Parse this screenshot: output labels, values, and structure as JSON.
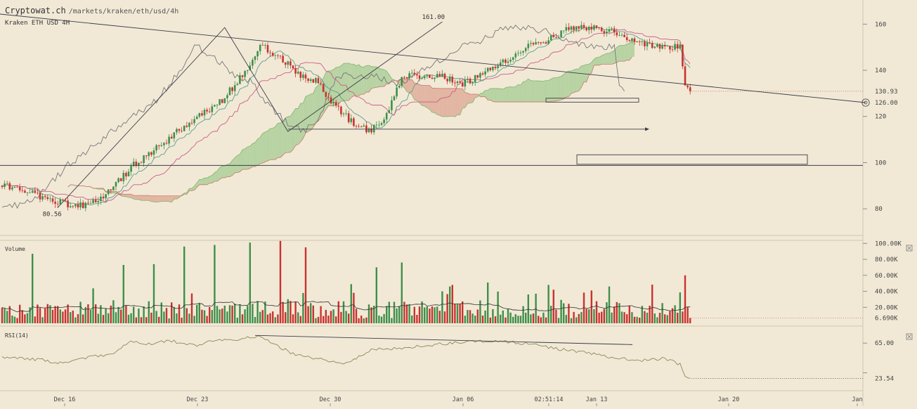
{
  "header": {
    "brand": "Cryptowat.ch",
    "path": "/markets/kraken/eth/usd/4h",
    "symbol": "Kraken ETH USD 4H"
  },
  "colors": {
    "background": "#f1e9d6",
    "up": "#3f8f4a",
    "down": "#c8332f",
    "cloud_bull": "#9fc98d",
    "cloud_bear": "#dca08c",
    "tenkan": "#5a9e8c",
    "kijun": "#cc5c86",
    "chikou": "#777777",
    "trendline": "#3c3c48",
    "rsi_line": "#8a8a5a",
    "current_price": "#cc6a6a"
  },
  "chart_data": [
    {
      "id": "price",
      "type": "candlestick",
      "ylim": [
        70,
        168
      ],
      "y_ticks": [
        "160",
        "140",
        "120",
        "100",
        "80"
      ],
      "current_price_label": "130.93",
      "target_label": "126.00",
      "annotations": {
        "high": "161.00",
        "low": "80.56"
      },
      "x_ticks": [
        "Dec 16",
        "Dec 23",
        "Dec 30",
        "Jan 06",
        "02:51:14",
        "Jan 13",
        "Jan 20",
        "Jan"
      ],
      "ohlc_profile": [
        [
          0,
          90
        ],
        [
          8,
          88
        ],
        [
          14,
          86
        ],
        [
          22,
          83
        ],
        [
          28,
          81
        ],
        [
          34,
          82
        ],
        [
          40,
          85
        ],
        [
          52,
          99
        ],
        [
          62,
          107
        ],
        [
          72,
          116
        ],
        [
          86,
          126
        ],
        [
          96,
          139
        ],
        [
          102,
          151
        ],
        [
          110,
          146
        ],
        [
          118,
          137
        ],
        [
          124,
          136
        ],
        [
          130,
          126
        ],
        [
          140,
          116
        ],
        [
          146,
          114
        ],
        [
          152,
          121
        ],
        [
          158,
          137
        ],
        [
          166,
          138
        ],
        [
          174,
          137
        ],
        [
          182,
          134
        ],
        [
          196,
          142
        ],
        [
          208,
          150
        ],
        [
          218,
          154
        ],
        [
          226,
          159
        ],
        [
          234,
          158
        ],
        [
          240,
          157
        ],
        [
          246,
          155
        ],
        [
          254,
          151
        ],
        [
          262,
          150
        ],
        [
          268,
          150
        ],
        [
          270,
          132
        ],
        [
          272,
          130.93
        ]
      ]
    },
    {
      "id": "volume",
      "type": "bar",
      "title": "Volume",
      "ylim": [
        0,
        102
      ],
      "y_ticks": [
        "100.00K",
        "80.00K",
        "60.00K",
        "40.00K",
        "20.00K"
      ],
      "current_label": "6.690K",
      "spikes": [
        [
          12,
          87
        ],
        [
          48,
          73
        ],
        [
          60,
          74
        ],
        [
          72,
          96
        ],
        [
          84,
          98
        ],
        [
          98,
          101
        ],
        [
          110,
          103
        ],
        [
          120,
          95
        ],
        [
          138,
          49
        ],
        [
          148,
          70
        ],
        [
          158,
          76
        ],
        [
          178,
          48
        ],
        [
          192,
          51
        ],
        [
          218,
          42
        ],
        [
          240,
          46
        ],
        [
          270,
          60
        ]
      ]
    },
    {
      "id": "rsi",
      "type": "line",
      "title": "RSI(14)",
      "ylim": [
        14,
        80
      ],
      "y_ticks": [
        "65.00",
        "23.54"
      ],
      "current_label": "23.54",
      "profile": [
        [
          0,
          48
        ],
        [
          8,
          47
        ],
        [
          16,
          45
        ],
        [
          24,
          41
        ],
        [
          34,
          48
        ],
        [
          44,
          52
        ],
        [
          50,
          67
        ],
        [
          58,
          64
        ],
        [
          66,
          68
        ],
        [
          76,
          62
        ],
        [
          86,
          69
        ],
        [
          94,
          68
        ],
        [
          98,
          72
        ],
        [
          102,
          73
        ],
        [
          108,
          63
        ],
        [
          116,
          51
        ],
        [
          126,
          46
        ],
        [
          136,
          41
        ],
        [
          146,
          57
        ],
        [
          156,
          59
        ],
        [
          170,
          63
        ],
        [
          182,
          66
        ],
        [
          196,
          68
        ],
        [
          208,
          64
        ],
        [
          220,
          58
        ],
        [
          230,
          54
        ],
        [
          240,
          49
        ],
        [
          252,
          44
        ],
        [
          262,
          47
        ],
        [
          268,
          40
        ],
        [
          270,
          25
        ],
        [
          272,
          23.54
        ]
      ]
    }
  ]
}
